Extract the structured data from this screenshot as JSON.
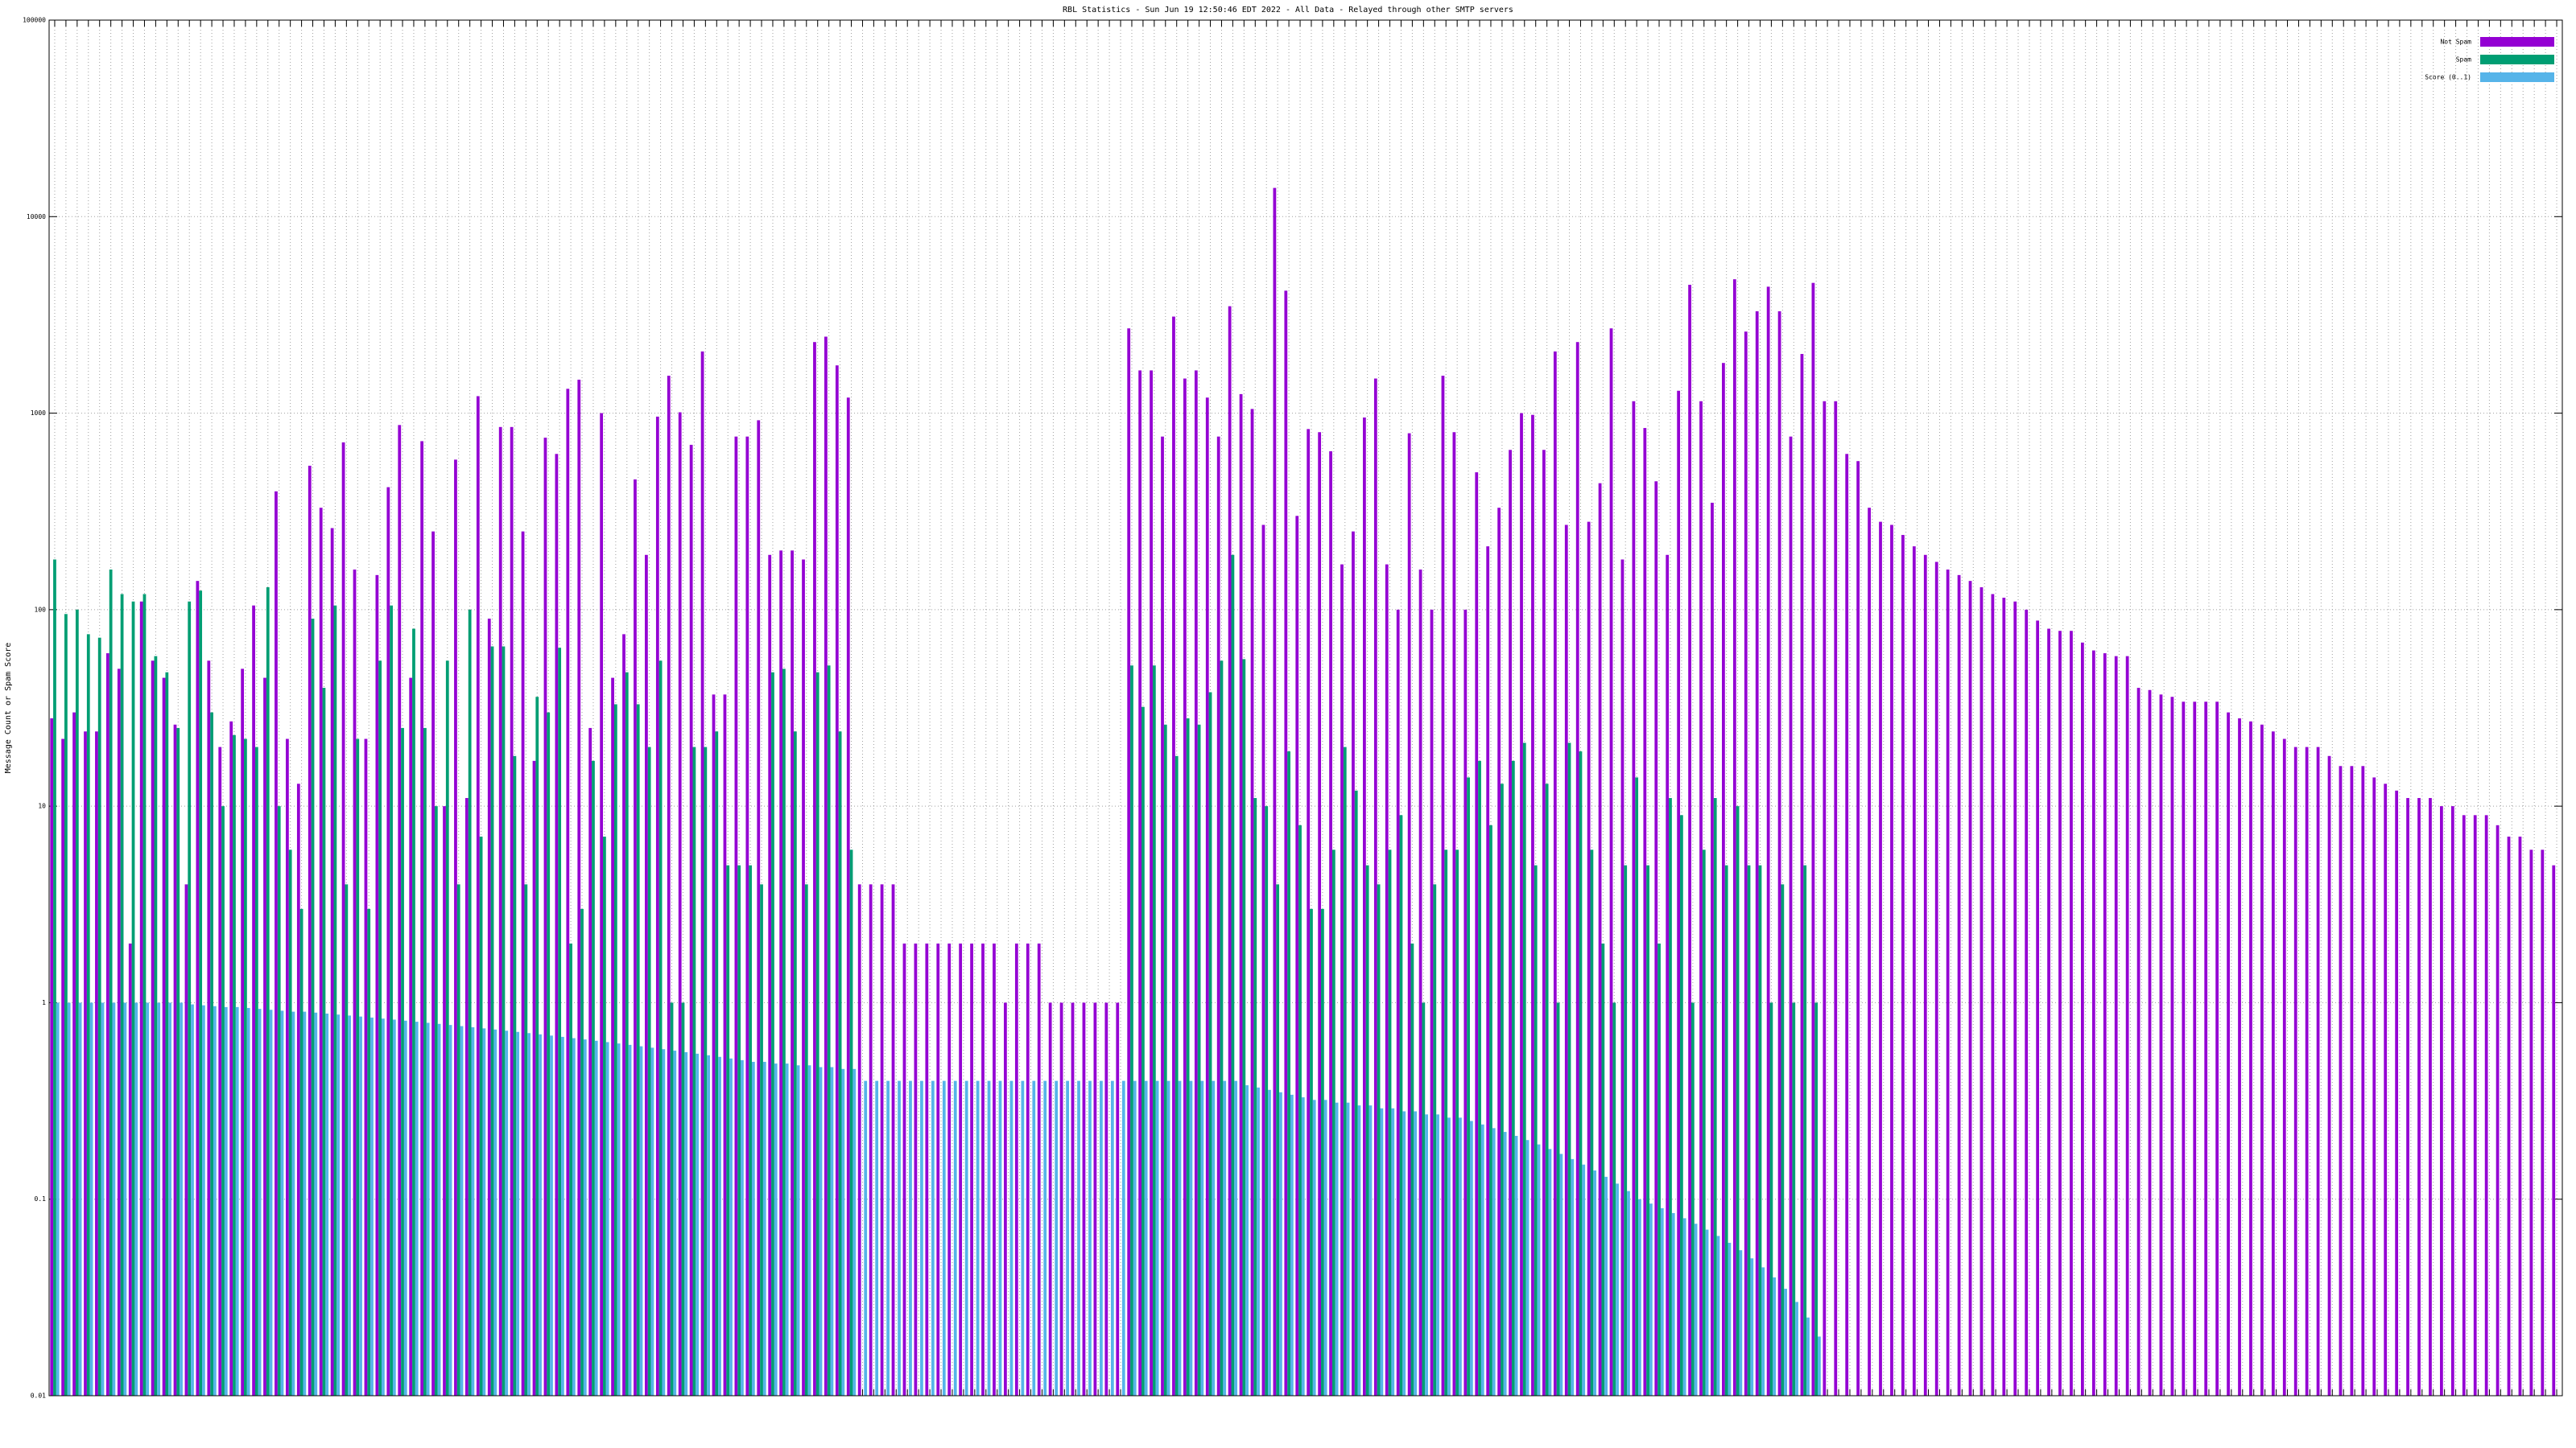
{
  "chart_data": {
    "type": "bar",
    "log_scale": true,
    "grid": true,
    "legend_position": "top-right",
    "title": "RBL Statistics - Sun Jun 19 12:50:46 EDT 2022 - All Data - Relayed through other SMTP servers",
    "y_label": "Message Count or Spam Score",
    "ylim": [
      0.01,
      100000
    ],
    "yticks": [
      0.01,
      0.1,
      1,
      10,
      100,
      1000,
      10000,
      100000
    ],
    "categories": [
      null,
      null,
      null,
      null,
      null,
      null,
      null,
      null,
      null,
      null,
      null,
      null,
      null,
      null,
      null,
      null,
      null,
      null,
      null,
      null,
      null,
      null,
      null,
      null,
      null,
      null,
      null,
      null,
      null,
      null,
      null,
      null,
      null,
      null,
      null,
      null,
      null,
      null,
      null,
      null,
      null,
      null,
      null,
      null,
      null,
      null,
      null,
      null,
      null,
      null,
      null,
      null,
      null,
      null,
      null,
      null,
      null,
      null,
      null,
      null,
      null,
      null,
      null,
      null,
      null,
      null,
      null,
      null,
      null,
      null,
      null,
      null,
      null,
      null,
      null,
      null,
      null,
      null,
      null,
      null,
      null,
      null,
      null,
      null,
      null,
      null,
      null,
      null,
      null,
      null,
      null,
      null,
      null,
      null,
      null,
      null,
      null,
      null,
      null,
      null,
      null,
      null,
      null,
      null,
      null,
      null,
      null,
      null,
      null,
      null,
      null,
      null,
      null,
      null,
      null,
      null,
      null,
      null,
      null,
      null,
      null,
      null,
      null,
      null,
      null,
      null,
      null,
      null,
      null,
      null,
      null,
      null,
      null,
      null,
      null,
      null,
      null,
      null,
      null,
      null,
      null,
      null,
      null,
      null,
      null,
      null,
      null,
      null,
      null,
      null,
      null,
      null,
      null,
      null,
      null,
      null,
      null,
      null,
      null,
      null,
      null,
      null,
      null,
      null,
      null,
      null,
      null,
      null,
      null,
      null,
      null,
      null,
      null,
      null,
      null,
      null,
      null,
      null,
      null,
      null,
      null,
      null,
      null,
      null,
      null,
      null,
      null,
      null,
      null,
      null,
      null,
      null,
      null,
      null,
      null,
      null,
      null,
      null,
      null,
      null,
      null,
      null,
      null,
      null,
      null,
      null,
      null,
      null,
      null,
      null,
      null,
      null,
      null,
      null,
      null,
      null,
      null,
      null,
      null,
      null,
      null,
      null,
      null,
      null
    ],
    "series": [
      {
        "name": "Not Spam",
        "color": "#9400d3",
        "values": [
          28,
          22,
          30,
          24,
          24,
          60,
          50,
          2,
          110,
          55,
          45,
          26,
          4,
          140,
          55,
          20,
          27,
          50,
          105,
          45,
          400,
          22,
          13,
          540,
          330,
          260,
          710,
          160,
          22,
          150,
          420,
          870,
          45,
          720,
          250,
          10,
          580,
          11,
          1220,
          90,
          850,
          850,
          250,
          17,
          750,
          620,
          1330,
          1480,
          25,
          1000,
          45,
          75,
          460,
          190,
          960,
          1550,
          1010,
          690,
          2060,
          37,
          37,
          760,
          760,
          920,
          190,
          200,
          200,
          180,
          2300,
          2450,
          1750,
          1200,
          4,
          4,
          4,
          4,
          2,
          2,
          2,
          2,
          2,
          2,
          2,
          2,
          2,
          1,
          2,
          2,
          2,
          1,
          1,
          1,
          1,
          1,
          1,
          1,
          2700,
          1650,
          1650,
          760,
          3100,
          1500,
          1650,
          1200,
          760,
          3500,
          1250,
          1050,
          270,
          14000,
          4200,
          300,
          830,
          800,
          640,
          170,
          250,
          950,
          1500,
          170,
          100,
          790,
          160,
          100,
          1550,
          800,
          100,
          500,
          210,
          330,
          650,
          1000,
          980,
          650,
          2060,
          270,
          2300,
          280,
          440,
          2700,
          180,
          1150,
          840,
          450,
          190,
          1300,
          4500,
          1150,
          350,
          1800,
          4800,
          2600,
          3300,
          4400,
          3300,
          760,
          2000,
          4600,
          1150,
          1150,
          620,
          570,
          330,
          280,
          270,
          240,
          210,
          190,
          175,
          160,
          150,
          140,
          130,
          120,
          115,
          110,
          100,
          88,
          80,
          78,
          78,
          68,
          62,
          60,
          58,
          58,
          40,
          39,
          37,
          36,
          34,
          34,
          34,
          34,
          30,
          28,
          27,
          26,
          24,
          22,
          20,
          20,
          20,
          18,
          16,
          16,
          16,
          14,
          13,
          12,
          11,
          11,
          11,
          10,
          10,
          9,
          9,
          9,
          8,
          7,
          7,
          6,
          6,
          5
        ]
      },
      {
        "name": "Spam",
        "color": "#009e73",
        "values": [
          180,
          95,
          100,
          75,
          72,
          160,
          120,
          110,
          120,
          58,
          48,
          25,
          110,
          125,
          30,
          10,
          23,
          22,
          20,
          130,
          10,
          6,
          3,
          90,
          40,
          105,
          4,
          22,
          3,
          55,
          105,
          25,
          80,
          25,
          10,
          55,
          4,
          100,
          7,
          65,
          65,
          18,
          4,
          36,
          30,
          64,
          2,
          3,
          17,
          7,
          33,
          48,
          33,
          20,
          55,
          1,
          1,
          20,
          20,
          24,
          5,
          5,
          5,
          4,
          48,
          50,
          24,
          4,
          48,
          52,
          24,
          6,
          null,
          null,
          null,
          null,
          null,
          null,
          null,
          null,
          null,
          null,
          null,
          null,
          null,
          null,
          null,
          null,
          null,
          null,
          null,
          null,
          null,
          null,
          null,
          null,
          52,
          32,
          52,
          26,
          18,
          28,
          26,
          38,
          55,
          190,
          56,
          11,
          10,
          4,
          19,
          8,
          3,
          3,
          6,
          20,
          12,
          5,
          4,
          6,
          9,
          2,
          1,
          4,
          6,
          6,
          14,
          17,
          8,
          13,
          17,
          21,
          5,
          13,
          1,
          21,
          19,
          6,
          2,
          1,
          5,
          14,
          5,
          2,
          11,
          9,
          1,
          6,
          11,
          5,
          10,
          5,
          5,
          1,
          4,
          1,
          5,
          1,
          null,
          null,
          null,
          null,
          null,
          null,
          null,
          null,
          null,
          null,
          null,
          null,
          null,
          null,
          null,
          null,
          null,
          null,
          null,
          null,
          null,
          null,
          null,
          null,
          null,
          null,
          null,
          null,
          null,
          null,
          null,
          null,
          null,
          null,
          null,
          null,
          null,
          null,
          null,
          null,
          null,
          null,
          null,
          null,
          null,
          null,
          null,
          null,
          null,
          null,
          null,
          null,
          null,
          null,
          null,
          null,
          null,
          null,
          null,
          null,
          null,
          null,
          null,
          null,
          null,
          null
        ]
      },
      {
        "name": "Score (0..1)",
        "color": "#56b4e9",
        "values": [
          1,
          1,
          1,
          1,
          1,
          1,
          1,
          1,
          1,
          1,
          1,
          1,
          0.98,
          0.97,
          0.96,
          0.95,
          0.95,
          0.94,
          0.93,
          0.92,
          0.91,
          0.9,
          0.9,
          0.89,
          0.88,
          0.87,
          0.86,
          0.85,
          0.84,
          0.83,
          0.82,
          0.81,
          0.8,
          0.79,
          0.78,
          0.77,
          0.76,
          0.75,
          0.74,
          0.73,
          0.72,
          0.71,
          0.7,
          0.69,
          0.68,
          0.67,
          0.66,
          0.65,
          0.64,
          0.63,
          0.62,
          0.61,
          0.6,
          0.59,
          0.58,
          0.57,
          0.56,
          0.55,
          0.54,
          0.53,
          0.52,
          0.51,
          0.5,
          0.5,
          0.49,
          0.49,
          0.48,
          0.48,
          0.47,
          0.47,
          0.46,
          0.46,
          0.4,
          0.4,
          0.4,
          0.4,
          0.4,
          0.4,
          0.4,
          0.4,
          0.4,
          0.4,
          0.4,
          0.4,
          0.4,
          0.4,
          0.4,
          0.4,
          0.4,
          0.4,
          0.4,
          0.4,
          0.4,
          0.4,
          0.4,
          0.4,
          0.4,
          0.4,
          0.4,
          0.4,
          0.4,
          0.4,
          0.4,
          0.4,
          0.4,
          0.4,
          0.38,
          0.37,
          0.36,
          0.35,
          0.34,
          0.33,
          0.32,
          0.32,
          0.31,
          0.31,
          0.3,
          0.3,
          0.29,
          0.29,
          0.28,
          0.28,
          0.27,
          0.27,
          0.26,
          0.26,
          0.25,
          0.24,
          0.23,
          0.22,
          0.21,
          0.2,
          0.19,
          0.18,
          0.17,
          0.16,
          0.15,
          0.14,
          0.13,
          0.12,
          0.11,
          0.1,
          0.095,
          0.09,
          0.085,
          0.08,
          0.075,
          0.07,
          0.065,
          0.06,
          0.055,
          0.05,
          0.045,
          0.04,
          0.035,
          0.03,
          0.025,
          0.02,
          null,
          null,
          null,
          null,
          null,
          null,
          null,
          null,
          null,
          null,
          null,
          null,
          null,
          null,
          null,
          null,
          null,
          null,
          null,
          null,
          null,
          null,
          null,
          null,
          null,
          null,
          null,
          null,
          null,
          null,
          null,
          null,
          null,
          null,
          null,
          null,
          null,
          null,
          null,
          null,
          null,
          null,
          null,
          null,
          null,
          null,
          null,
          null,
          null,
          null,
          null,
          null,
          null,
          null,
          null,
          null,
          null,
          null,
          null,
          null,
          null,
          null,
          null,
          null,
          null,
          null
        ]
      }
    ]
  }
}
